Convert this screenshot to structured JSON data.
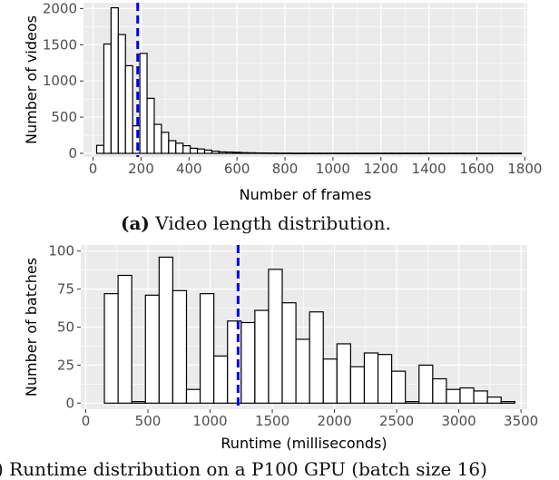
{
  "captions": {
    "a_label": "(a)",
    "a_text": "Video length distribution.",
    "b_text": ") Runtime distribution on a P100 GPU (batch size 16)"
  },
  "chart_data": [
    {
      "type": "bar",
      "panel": "a",
      "xlabel": "Number of frames",
      "ylabel": "Number of videos",
      "xlim": [
        -40,
        1810
      ],
      "ylim": [
        -50,
        2080
      ],
      "xticks": [
        0,
        200,
        400,
        600,
        800,
        1000,
        1200,
        1400,
        1600,
        1800
      ],
      "yticks": [
        0,
        500,
        1000,
        1500,
        2000
      ],
      "bin_width": 30,
      "bin_centers": [
        30,
        60,
        90,
        120,
        150,
        180,
        210,
        240,
        270,
        300,
        330,
        360,
        390,
        420,
        450,
        480,
        510,
        540,
        570,
        600,
        630,
        660,
        690,
        720,
        750,
        780,
        810,
        840,
        870,
        900,
        930,
        960,
        990,
        1020,
        1050,
        1080,
        1110,
        1140,
        1170,
        1200,
        1230,
        1260,
        1290,
        1320,
        1350,
        1380,
        1410,
        1440,
        1470,
        1500,
        1530,
        1560,
        1590,
        1620,
        1650,
        1680,
        1710,
        1740,
        1770
      ],
      "values": [
        110,
        1510,
        2010,
        1640,
        1210,
        380,
        1380,
        760,
        400,
        290,
        175,
        140,
        105,
        70,
        60,
        45,
        30,
        20,
        18,
        15,
        10,
        8,
        6,
        5,
        4,
        3,
        3,
        2,
        2,
        2,
        2,
        2,
        2,
        2,
        2,
        2,
        2,
        2,
        2,
        2,
        2,
        2,
        2,
        2,
        2,
        2,
        2,
        2,
        2,
        2,
        2,
        2,
        2,
        2,
        2,
        2,
        2,
        2,
        2
      ],
      "mean_line": 186,
      "mean_line_color": "#0000ee"
    },
    {
      "type": "bar",
      "panel": "b",
      "xlabel": "Runtime (milliseconds)",
      "ylabel": "Number of batches",
      "xlim": [
        -40,
        3550
      ],
      "ylim": [
        -4,
        104
      ],
      "xticks": [
        0,
        500,
        1000,
        1500,
        2000,
        2500,
        3000,
        3500
      ],
      "yticks": [
        0,
        25,
        50,
        75,
        100
      ],
      "bin_width": 110,
      "bin_centers": [
        205,
        315,
        425,
        535,
        645,
        755,
        865,
        975,
        1085,
        1195,
        1305,
        1415,
        1525,
        1635,
        1745,
        1855,
        1965,
        2075,
        2185,
        2295,
        2405,
        2515,
        2625,
        2735,
        2845,
        2955,
        3065,
        3175,
        3285,
        3395
      ],
      "values": [
        72,
        84,
        1,
        71,
        96,
        74,
        9,
        72,
        31,
        54,
        53,
        61,
        88,
        66,
        42,
        60,
        29,
        39,
        24,
        33,
        32,
        21,
        1,
        25,
        16,
        9,
        10,
        8,
        4,
        1
      ],
      "mean_line": 1225,
      "mean_line_color": "#0000ee"
    }
  ],
  "colors": {
    "panel_bg": "#ebebeb",
    "grid": "#ffffff",
    "bar_fill": "#ffffff",
    "bar_stroke": "#000000",
    "axis_text": "#4d4d4d"
  }
}
